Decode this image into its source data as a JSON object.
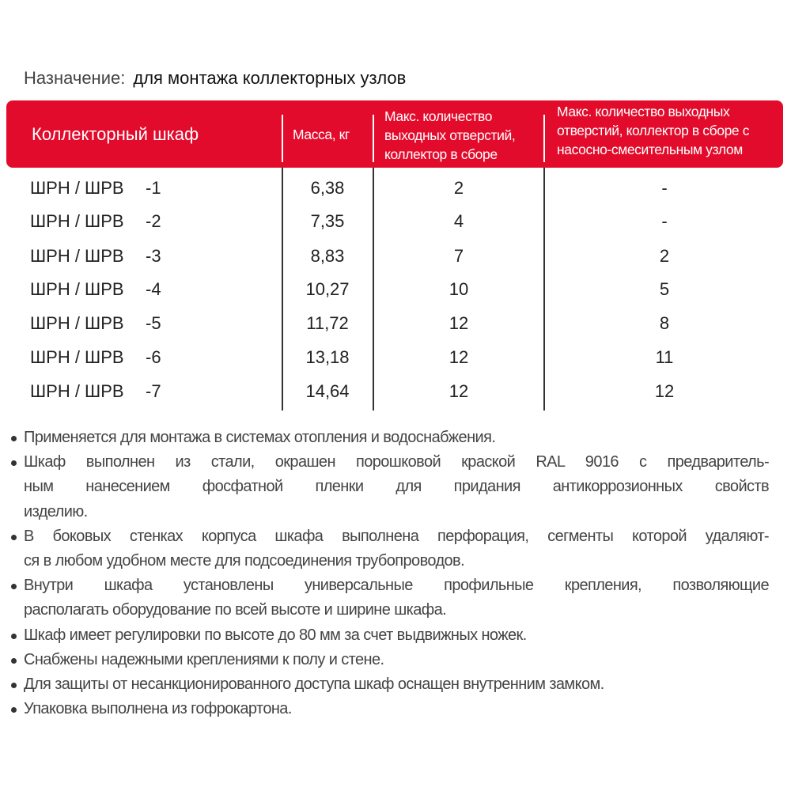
{
  "purpose": {
    "label": "Назначение:",
    "value": "для монтажа коллекторных узлов"
  },
  "table": {
    "header_color": "#e30b2b",
    "headers": [
      "Коллекторный шкаф",
      "Масса, кг",
      "Макс. количество выходных отверстий, коллектор в сборе",
      "Макс. количество выходных отверстий, коллектор в сборе с насосно-смесительным узлом"
    ],
    "header_lines": {
      "col3": [
        "Макс. количество",
        "выходных отверстий,",
        "коллектор в сборе"
      ],
      "col4": [
        "Макс. количество выходных",
        "отверстий, коллектор в сборе с",
        "насосно-смесительным узлом"
      ]
    },
    "rows": [
      {
        "model": "ШРН / ШРВ",
        "suffix": "-1",
        "mass": "6,38",
        "outlets": "2",
        "outlets_pump": "-"
      },
      {
        "model": "ШРН / ШРВ",
        "suffix": "-2",
        "mass": "7,35",
        "outlets": "4",
        "outlets_pump": "-"
      },
      {
        "model": "ШРН / ШРВ",
        "suffix": "-3",
        "mass": "8,83",
        "outlets": "7",
        "outlets_pump": "2"
      },
      {
        "model": "ШРН / ШРВ",
        "suffix": "-4",
        "mass": "10,27",
        "outlets": "10",
        "outlets_pump": "5"
      },
      {
        "model": "ШРН / ШРВ",
        "suffix": "-5",
        "mass": "11,72",
        "outlets": "12",
        "outlets_pump": "8"
      },
      {
        "model": "ШРН / ШРВ",
        "suffix": "-6",
        "mass": "13,18",
        "outlets": "12",
        "outlets_pump": "11"
      },
      {
        "model": "ШРН / ШРВ",
        "suffix": "-7",
        "mass": "14,64",
        "outlets": "12",
        "outlets_pump": "12"
      }
    ]
  },
  "bullets": [
    {
      "lines": [
        "Применяется для монтажа в системах отопления и водоснабжения."
      ]
    },
    {
      "lines": [
        "Шкаф выполнен из стали, окрашен порошковой краской RAL 9016 с предваритель-",
        "ным нанесением фосфатной пленки для придания антикоррозионных свойств",
        "изделию."
      ]
    },
    {
      "lines": [
        "В боковых стенках корпуса шкафа выполнена перфорация, сегменты которой удаляют-",
        "ся в любом удобном месте для подсоединения трубопроводов."
      ]
    },
    {
      "lines": [
        "Внутри шкафа установлены универсальные профильные крепления, позволяющие",
        "располагать оборудование по всей высоте и ширине шкафа."
      ]
    },
    {
      "lines": [
        "Шкаф имеет регулировки по высоте до 80 мм за счет выдвижных ножек."
      ]
    },
    {
      "lines": [
        "Снабжены надежными креплениями к полу и стене."
      ]
    },
    {
      "lines": [
        "Для защиты от несанкционированного доступа шкаф оснащен внутренним замком."
      ]
    },
    {
      "lines": [
        "Упаковка выполнена из гофрокартона."
      ]
    }
  ]
}
